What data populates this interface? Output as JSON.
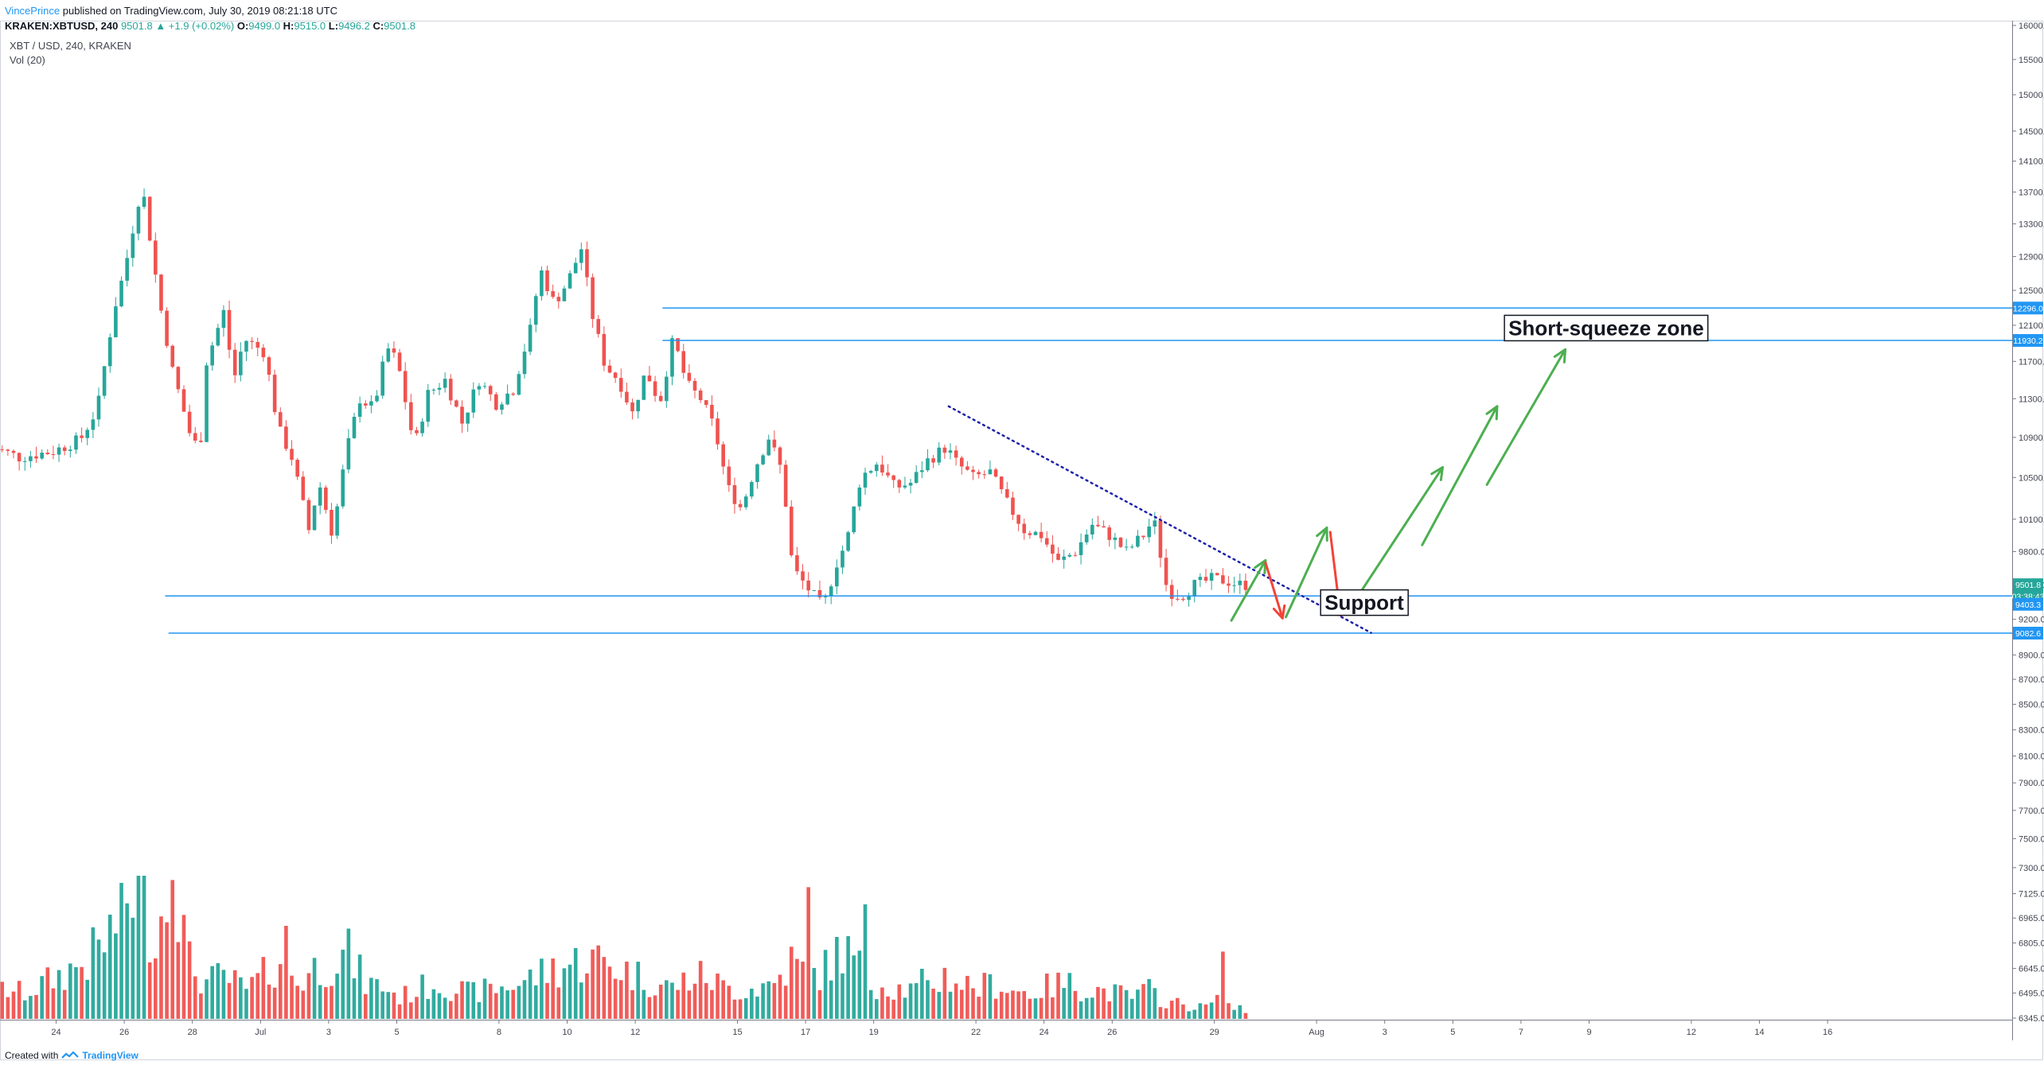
{
  "header": {
    "author": "VincePrince",
    "published": "published on TradingView.com, July 30, 2019 08:21:18 UTC"
  },
  "ohlc": {
    "symbol": "KRAKEN:XBTUSD, 240",
    "last": "9501.8",
    "change": "▲ +1.9 (+0.02%)",
    "o_label": "O:",
    "o": "9499.0",
    "h_label": "H:",
    "h": "9515.0",
    "l_label": "L:",
    "l": "9496.2",
    "c_label": "C:",
    "c": "9501.8"
  },
  "legend": {
    "series": "XBT / USD, 240, KRAKEN",
    "volume": "Vol (20)"
  },
  "footer": {
    "created_with": "Created with",
    "brand": "TradingView"
  },
  "chart_data": {
    "type": "candlestick",
    "y_scale": "log",
    "ylim": [
      6345,
      16000
    ],
    "colors": {
      "up": "#26a69a",
      "down": "#ef5350",
      "line": "#2196f3",
      "trend": "#1e22aa",
      "arrow_up": "#4caf50",
      "arrow_down": "#f44336"
    },
    "y_ticks": [
      "16000.0",
      "15500.0",
      "15000.0",
      "14500.0",
      "14100.0",
      "13700.0",
      "13300.0",
      "12900.0",
      "12500.0",
      "12100.0",
      "11700.0",
      "11300.0",
      "10900.0",
      "10500.0",
      "10100.0",
      "9800.0",
      "9500.0",
      "9200.0",
      "8900.0",
      "8700.0",
      "8500.0",
      "8300.0",
      "8100.0",
      "7900.0",
      "7700.0",
      "7500.0",
      "7300.0",
      "7125.0",
      "6965.0",
      "6805.0",
      "6645.0",
      "6495.0",
      "6345.0"
    ],
    "x_ticks": [
      {
        "label": "24",
        "day": 24
      },
      {
        "label": "26",
        "day": 26
      },
      {
        "label": "28",
        "day": 28
      },
      {
        "label": "Jul",
        "day": 30
      },
      {
        "label": "3",
        "day": 32
      },
      {
        "label": "5",
        "day": 34
      },
      {
        "label": "8",
        "day": 37
      },
      {
        "label": "10",
        "day": 39
      },
      {
        "label": "12",
        "day": 41
      },
      {
        "label": "15",
        "day": 44
      },
      {
        "label": "17",
        "day": 46
      },
      {
        "label": "19",
        "day": 48
      },
      {
        "label": "22",
        "day": 51
      },
      {
        "label": "24",
        "day": 53
      },
      {
        "label": "26",
        "day": 55
      },
      {
        "label": "29",
        "day": 58
      },
      {
        "label": "Aug",
        "day": 61
      },
      {
        "label": "3",
        "day": 63
      },
      {
        "label": "5",
        "day": 65
      },
      {
        "label": "7",
        "day": 67
      },
      {
        "label": "9",
        "day": 69
      },
      {
        "label": "12",
        "day": 72
      },
      {
        "label": "14",
        "day": 74
      },
      {
        "label": "16",
        "day": 76
      }
    ],
    "price_labels": [
      {
        "text": "12296.0",
        "price": 12296,
        "color": "#2196f3"
      },
      {
        "text": "11930.2",
        "price": 11930.2,
        "color": "#2196f3"
      },
      {
        "text": "9501.8",
        "price": 9501.8,
        "color": "#26a69a"
      },
      {
        "text": "03:38:43",
        "price": 9400,
        "color": "#26a69a"
      },
      {
        "text": "9403.3",
        "price": 9330,
        "color": "#2196f3"
      },
      {
        "text": "9082.6",
        "price": 9082.6,
        "color": "#2196f3"
      }
    ],
    "annotations": [
      {
        "text": "Short-squeeze zone",
        "day": 69.5,
        "price": 12050
      },
      {
        "text": "Support",
        "day": 62.4,
        "price": 9330
      }
    ],
    "horizontal_lines": [
      {
        "price": 12296.0,
        "from_day": 41.8
      },
      {
        "price": 11930.2,
        "from_day": 41.8
      },
      {
        "price": 9403.3,
        "from_day": 27.2
      },
      {
        "price": 9082.6,
        "from_day": 27.3
      }
    ],
    "trendline": {
      "from": {
        "day": 50.2,
        "price": 11220
      },
      "to": {
        "day": 62.6,
        "price": 9085
      }
    },
    "arrows": [
      {
        "from": {
          "day": 58.5,
          "price": 9190
        },
        "to": {
          "day": 59.5,
          "price": 9720
        },
        "dir": "up"
      },
      {
        "from": {
          "day": 59.5,
          "price": 9700
        },
        "to": {
          "day": 60.0,
          "price": 9210
        },
        "dir": "down"
      },
      {
        "from": {
          "day": 60.1,
          "price": 9220
        },
        "to": {
          "day": 61.3,
          "price": 10020
        },
        "dir": "up"
      },
      {
        "from": {
          "day": 61.4,
          "price": 9980
        },
        "to": {
          "day": 61.7,
          "price": 9235
        },
        "dir": "down"
      },
      {
        "from": {
          "day": 61.9,
          "price": 9260
        },
        "to": {
          "day": 64.7,
          "price": 10600
        },
        "dir": "up"
      },
      {
        "from": {
          "day": 64.1,
          "price": 9860
        },
        "to": {
          "day": 66.3,
          "price": 11220
        },
        "dir": "up"
      },
      {
        "from": {
          "day": 66.0,
          "price": 10430
        },
        "to": {
          "day": 68.3,
          "price": 11830
        },
        "dir": "up"
      }
    ],
    "price_anchors": [
      [
        22.0,
        10830
      ],
      [
        23.0,
        10700
      ],
      [
        24.0,
        10760
      ],
      [
        24.8,
        10880
      ],
      [
        25.3,
        11200
      ],
      [
        25.8,
        12300
      ],
      [
        26.1,
        12750
      ],
      [
        26.6,
        13800
      ],
      [
        27.1,
        12400
      ],
      [
        27.5,
        11600
      ],
      [
        28.0,
        10950
      ],
      [
        28.3,
        10750
      ],
      [
        28.5,
        11700
      ],
      [
        29.0,
        12250
      ],
      [
        29.3,
        11500
      ],
      [
        29.6,
        11950
      ],
      [
        30.2,
        11800
      ],
      [
        30.6,
        11000
      ],
      [
        31.0,
        10700
      ],
      [
        31.5,
        10000
      ],
      [
        31.8,
        10450
      ],
      [
        32.2,
        9950
      ],
      [
        32.6,
        10750
      ],
      [
        33.0,
        11300
      ],
      [
        33.4,
        11200
      ],
      [
        33.8,
        11850
      ],
      [
        34.1,
        11700
      ],
      [
        34.6,
        10800
      ],
      [
        35.0,
        11350
      ],
      [
        35.5,
        11500
      ],
      [
        36.0,
        11050
      ],
      [
        36.5,
        11500
      ],
      [
        37.0,
        11250
      ],
      [
        37.5,
        11400
      ],
      [
        38.0,
        12050
      ],
      [
        38.3,
        12750
      ],
      [
        38.7,
        12350
      ],
      [
        39.1,
        12600
      ],
      [
        39.5,
        13000
      ],
      [
        39.8,
        12250
      ],
      [
        40.2,
        11650
      ],
      [
        40.6,
        11500
      ],
      [
        41.0,
        11150
      ],
      [
        41.4,
        11600
      ],
      [
        41.8,
        11250
      ],
      [
        42.2,
        11950
      ],
      [
        42.6,
        11450
      ],
      [
        43.0,
        11300
      ],
      [
        43.4,
        11000
      ],
      [
        43.8,
        10400
      ],
      [
        44.2,
        10200
      ],
      [
        44.6,
        10600
      ],
      [
        45.0,
        10900
      ],
      [
        45.4,
        10550
      ],
      [
        45.7,
        9650
      ],
      [
        46.2,
        9450
      ],
      [
        46.6,
        9300
      ],
      [
        47.0,
        9700
      ],
      [
        47.3,
        9900
      ],
      [
        47.7,
        10500
      ],
      [
        48.2,
        10650
      ],
      [
        48.7,
        10400
      ],
      [
        49.2,
        10450
      ],
      [
        49.6,
        10650
      ],
      [
        50.2,
        10800
      ],
      [
        50.5,
        10650
      ],
      [
        51.0,
        10500
      ],
      [
        51.5,
        10550
      ],
      [
        52.0,
        10250
      ],
      [
        52.5,
        10000
      ],
      [
        53.0,
        9950
      ],
      [
        53.5,
        9700
      ],
      [
        54.0,
        9800
      ],
      [
        54.5,
        10050
      ],
      [
        55.0,
        9950
      ],
      [
        55.5,
        9800
      ],
      [
        56.0,
        9950
      ],
      [
        56.3,
        10100
      ],
      [
        56.7,
        9450
      ],
      [
        57.1,
        9400
      ],
      [
        57.5,
        9500
      ],
      [
        58.0,
        9550
      ],
      [
        58.4,
        9540
      ],
      [
        58.8,
        9502
      ]
    ],
    "volume_ylim": [
      0,
      100
    ],
    "volume_anchors": [
      [
        22.0,
        22
      ],
      [
        23.0,
        18
      ],
      [
        24.0,
        30
      ],
      [
        24.8,
        40
      ],
      [
        25.4,
        55
      ],
      [
        25.8,
        75
      ],
      [
        26.3,
        95
      ],
      [
        26.8,
        60
      ],
      [
        27.4,
        97
      ],
      [
        27.8,
        40
      ],
      [
        28.3,
        25
      ],
      [
        28.8,
        30
      ],
      [
        29.5,
        20
      ],
      [
        30.0,
        30
      ],
      [
        30.6,
        45
      ],
      [
        31.0,
        25
      ],
      [
        31.5,
        35
      ],
      [
        32.0,
        40
      ],
      [
        32.5,
        45
      ],
      [
        33.0,
        25
      ],
      [
        33.6,
        22
      ],
      [
        34.0,
        15
      ],
      [
        34.5,
        20
      ],
      [
        35.0,
        25
      ],
      [
        35.6,
        22
      ],
      [
        36.0,
        18
      ],
      [
        36.5,
        20
      ],
      [
        37.0,
        22
      ],
      [
        37.5,
        25
      ],
      [
        38.0,
        30
      ],
      [
        38.5,
        35
      ],
      [
        39.0,
        38
      ],
      [
        39.5,
        42
      ],
      [
        40.0,
        40
      ],
      [
        40.5,
        35
      ],
      [
        41.0,
        30
      ],
      [
        41.5,
        25
      ],
      [
        42.0,
        22
      ],
      [
        42.5,
        28
      ],
      [
        43.0,
        30
      ],
      [
        43.5,
        22
      ],
      [
        44.0,
        20
      ],
      [
        44.5,
        22
      ],
      [
        45.0,
        25
      ],
      [
        45.5,
        40
      ],
      [
        46.0,
        30
      ],
      [
        46.5,
        35
      ],
      [
        47.0,
        50
      ],
      [
        47.5,
        35
      ],
      [
        48.0,
        25
      ],
      [
        48.5,
        22
      ],
      [
        49.0,
        20
      ],
      [
        49.5,
        22
      ],
      [
        50.0,
        30
      ],
      [
        50.5,
        25
      ],
      [
        51.0,
        22
      ],
      [
        51.5,
        25
      ],
      [
        52.0,
        20
      ],
      [
        52.5,
        18
      ],
      [
        53.0,
        22
      ],
      [
        53.5,
        25
      ],
      [
        54.0,
        22
      ],
      [
        54.5,
        20
      ],
      [
        55.0,
        18
      ],
      [
        55.5,
        15
      ],
      [
        56.0,
        20
      ],
      [
        56.5,
        12
      ],
      [
        57.0,
        10
      ],
      [
        57.5,
        8
      ],
      [
        58.0,
        12
      ],
      [
        58.5,
        8
      ],
      [
        58.9,
        5
      ]
    ],
    "volume_spikes": [
      [
        25.9,
        95
      ],
      [
        27.3,
        97
      ],
      [
        30.7,
        65
      ],
      [
        46.0,
        92
      ],
      [
        47.7,
        80
      ],
      [
        49.4,
        35
      ],
      [
        58.2,
        47
      ]
    ]
  }
}
